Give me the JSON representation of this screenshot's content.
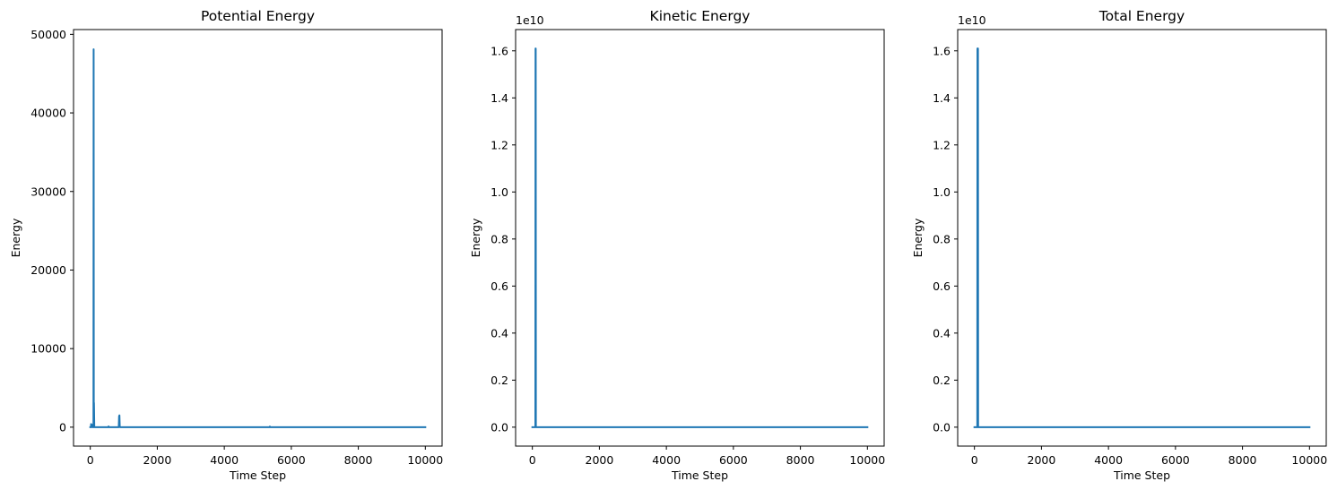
{
  "chart_data": [
    {
      "type": "line",
      "title": "Potential Energy",
      "xlabel": "Time Step",
      "ylabel": "Energy",
      "xlim": [
        -500,
        10500
      ],
      "ylim": [
        -2410,
        50610
      ],
      "xticks": [
        0,
        2000,
        4000,
        6000,
        8000,
        10000
      ],
      "xtick_labels": [
        "0",
        "2000",
        "4000",
        "6000",
        "8000",
        "10000"
      ],
      "yticks": [
        0,
        10000,
        20000,
        30000,
        40000,
        50000
      ],
      "ytick_labels": [
        "0",
        "10000",
        "20000",
        "30000",
        "40000",
        "50000"
      ],
      "offset_text": "",
      "grid": false,
      "line_color": "#1f77b4",
      "series": [
        {
          "x": [
            0,
            20,
            25,
            40,
            60,
            70,
            95,
            100,
            105,
            110,
            120,
            125,
            140,
            150,
            300,
            540,
            545,
            550,
            600,
            850,
            860,
            870,
            880,
            890,
            900,
            1000,
            5350,
            5360,
            5370,
            10000
          ],
          "y": [
            0,
            0,
            400,
            0,
            300,
            0,
            0,
            48100,
            0,
            3100,
            0,
            0,
            0,
            0,
            0,
            0,
            100,
            0,
            0,
            0,
            1400,
            1500,
            100,
            0,
            0,
            0,
            0,
            80,
            0,
            0
          ]
        }
      ]
    },
    {
      "type": "line",
      "title": "Kinetic Energy",
      "xlabel": "Time Step",
      "ylabel": "Energy",
      "xlim": [
        -500,
        10500
      ],
      "ylim": [
        -0.0805,
        1.6905
      ],
      "xticks": [
        0,
        2000,
        4000,
        6000,
        8000,
        10000
      ],
      "xtick_labels": [
        "0",
        "2000",
        "4000",
        "6000",
        "8000",
        "10000"
      ],
      "yticks": [
        0,
        0.2,
        0.4,
        0.6,
        0.8,
        1.0,
        1.2,
        1.4,
        1.6
      ],
      "ytick_labels": [
        "0.0",
        "0.2",
        "0.4",
        "0.6",
        "0.8",
        "1.0",
        "1.2",
        "1.4",
        "1.6"
      ],
      "offset_text": "1e10",
      "grid": false,
      "line_color": "#1f77b4",
      "series": [
        {
          "x": [
            0,
            90,
            95,
            100,
            105,
            10000
          ],
          "y": [
            0,
            0,
            1.61,
            1.61,
            0,
            0
          ]
        }
      ]
    },
    {
      "type": "line",
      "title": "Total Energy",
      "xlabel": "Time Step",
      "ylabel": "Energy",
      "xlim": [
        -500,
        10500
      ],
      "ylim": [
        -0.0805,
        1.6905
      ],
      "xticks": [
        0,
        2000,
        4000,
        6000,
        8000,
        10000
      ],
      "xtick_labels": [
        "0",
        "2000",
        "4000",
        "6000",
        "8000",
        "10000"
      ],
      "yticks": [
        0,
        0.2,
        0.4,
        0.6,
        0.8,
        1.0,
        1.2,
        1.4,
        1.6
      ],
      "ytick_labels": [
        "0.0",
        "0.2",
        "0.4",
        "0.6",
        "0.8",
        "1.0",
        "1.2",
        "1.4",
        "1.6"
      ],
      "offset_text": "1e10",
      "grid": false,
      "line_color": "#1f77b4",
      "series": [
        {
          "x": [
            0,
            85,
            90,
            95,
            100,
            105,
            110,
            10000
          ],
          "y": [
            0,
            0,
            1.61,
            0,
            1.61,
            1.61,
            0,
            0
          ]
        }
      ]
    }
  ]
}
